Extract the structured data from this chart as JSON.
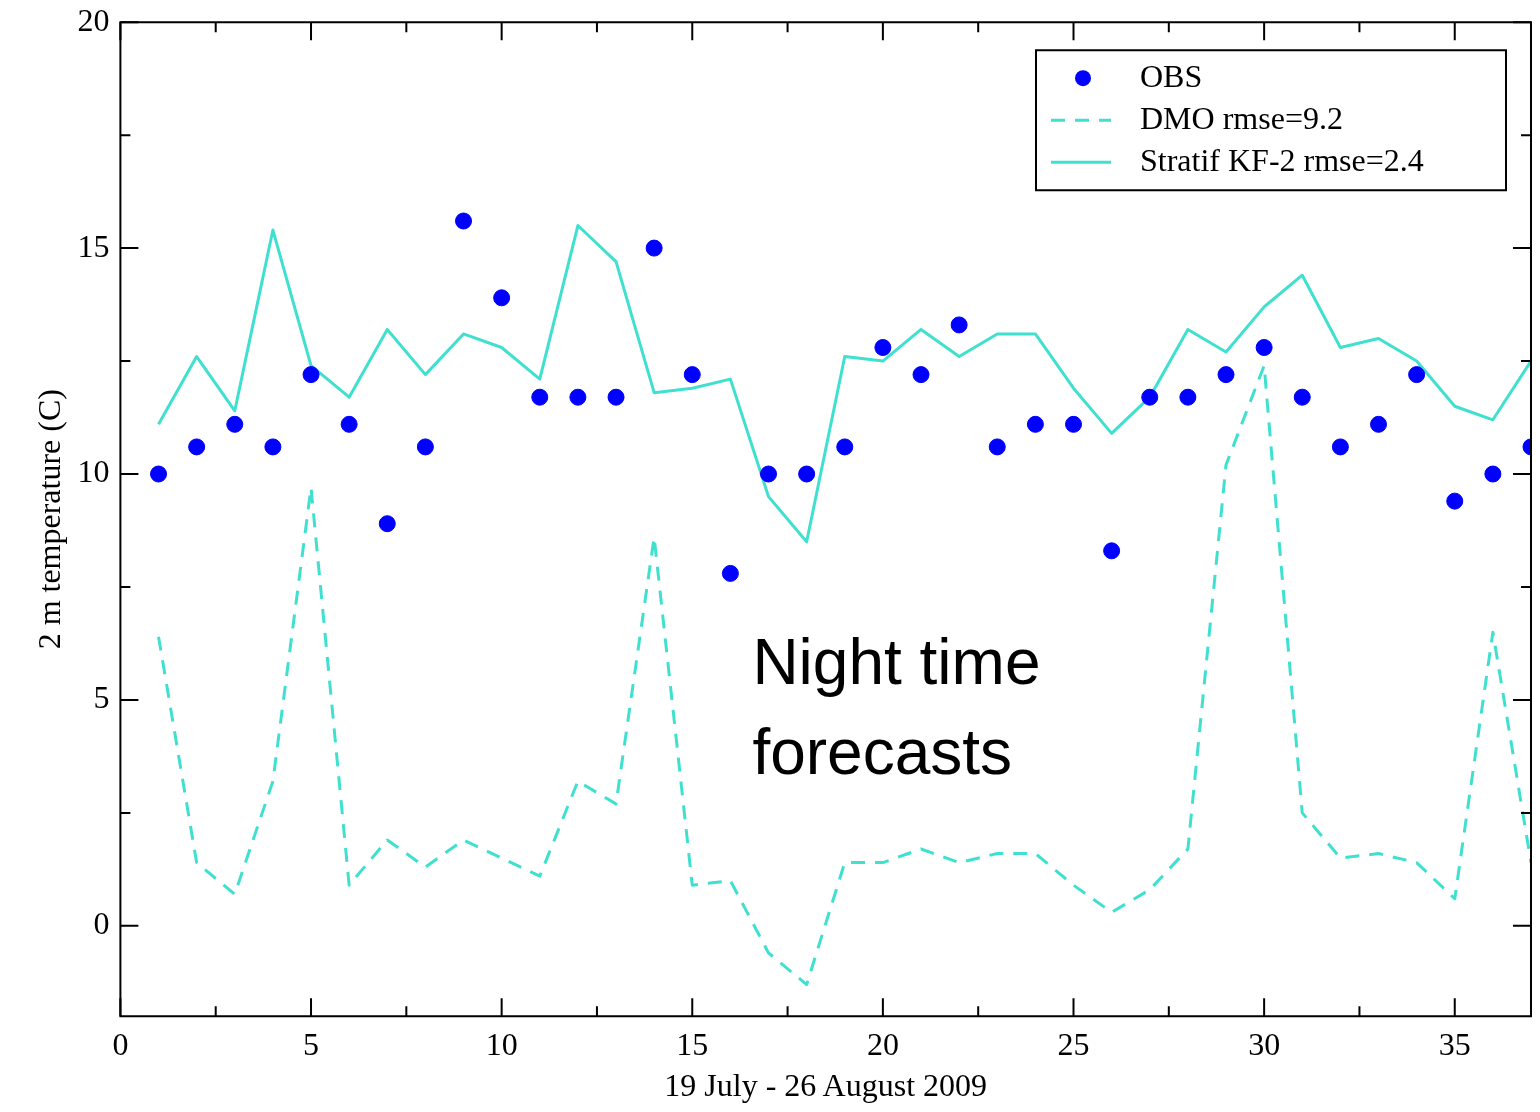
{
  "chart_data": {
    "type": "line",
    "xlabel": "19 July - 26 August 2009",
    "ylabel": "2 m temperature (C)",
    "x": [
      1,
      2,
      3,
      4,
      5,
      6,
      7,
      8,
      9,
      10,
      11,
      12,
      13,
      14,
      15,
      16,
      17,
      18,
      19,
      20,
      21,
      22,
      23,
      24,
      25,
      26,
      27,
      28,
      29,
      30,
      31,
      32,
      33,
      34,
      35,
      36,
      37
    ],
    "series": [
      {
        "name": "OBS",
        "type": "scatter",
        "marker": "circle",
        "color": "#0000ff",
        "values": [
          10.0,
          10.6,
          11.1,
          10.6,
          12.2,
          11.1,
          8.9,
          10.6,
          15.6,
          13.9,
          11.7,
          11.7,
          11.7,
          15.0,
          12.2,
          7.8,
          10.0,
          10.0,
          10.6,
          12.8,
          12.2,
          13.3,
          10.6,
          11.1,
          11.1,
          8.3,
          11.7,
          11.7,
          12.2,
          12.8,
          11.7,
          10.6,
          11.1,
          12.2,
          9.4,
          10.0,
          10.6
        ]
      },
      {
        "name": "DMO rmse=9.2",
        "line_style": "dashed",
        "color": "#40e0d0",
        "values": [
          6.4,
          1.4,
          0.7,
          3.2,
          9.7,
          0.9,
          1.9,
          1.3,
          1.9,
          1.5,
          1.1,
          3.2,
          2.7,
          8.6,
          0.9,
          1.0,
          -0.6,
          -1.3,
          1.4,
          1.4,
          1.7,
          1.4,
          1.6,
          1.6,
          0.9,
          0.3,
          0.8,
          1.7,
          10.2,
          12.4,
          2.5,
          1.5,
          1.6,
          1.4,
          0.6,
          6.5,
          1.4
        ]
      },
      {
        "name": "Stratif KF-2 rmse=2.4",
        "line_style": "solid",
        "color": "#40e0d0",
        "values": [
          11.1,
          12.6,
          11.4,
          15.4,
          12.4,
          11.7,
          13.2,
          12.2,
          13.1,
          12.8,
          12.1,
          15.5,
          14.7,
          11.8,
          11.9,
          12.1,
          9.5,
          8.5,
          12.6,
          12.5,
          13.2,
          12.6,
          13.1,
          13.1,
          11.9,
          10.9,
          11.7,
          13.2,
          12.7,
          13.7,
          14.4,
          12.8,
          13.0,
          12.5,
          11.5,
          11.2,
          12.5
        ]
      }
    ],
    "xlim": [
      0,
      37
    ],
    "xticks": [
      0,
      {
        "value": 2.5,
        "label": null
      },
      5,
      {
        "value": 7.5,
        "label": null
      },
      10,
      {
        "value": 12.5,
        "label": null
      },
      15,
      {
        "value": 17.5,
        "label": null
      },
      20,
      {
        "value": 22.5,
        "label": null
      },
      25,
      {
        "value": 27.5,
        "label": null
      },
      30,
      {
        "value": 32.5,
        "label": null
      },
      35
    ],
    "ylim": [
      -2,
      20
    ],
    "yticks": [
      0,
      {
        "value": 2.5,
        "label": null
      },
      5,
      {
        "value": 7.5,
        "label": null
      },
      10,
      {
        "value": 12.5,
        "label": null
      },
      15,
      {
        "value": 17.5,
        "label": null
      },
      20
    ],
    "legend": "top right",
    "grid": false,
    "annotations": [
      "Night time\nforecasts"
    ]
  }
}
